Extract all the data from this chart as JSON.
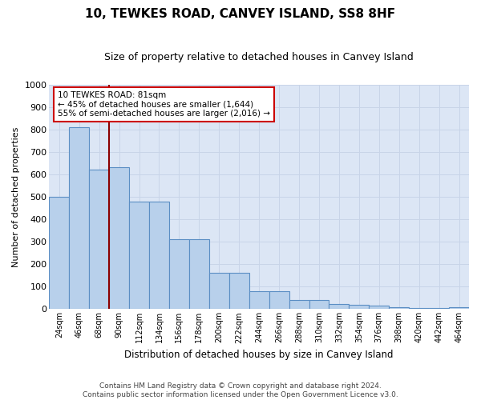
{
  "title": "10, TEWKES ROAD, CANVEY ISLAND, SS8 8HF",
  "subtitle": "Size of property relative to detached houses in Canvey Island",
  "xlabel": "Distribution of detached houses by size in Canvey Island",
  "ylabel": "Number of detached properties",
  "bar_heights": [
    500,
    810,
    620,
    630,
    480,
    480,
    310,
    310,
    160,
    160,
    80,
    80,
    42,
    42,
    22,
    20,
    15,
    10,
    5,
    5,
    8
  ],
  "categories": [
    "24sqm",
    "46sqm",
    "68sqm",
    "90sqm",
    "112sqm",
    "134sqm",
    "156sqm",
    "178sqm",
    "200sqm",
    "222sqm",
    "244sqm",
    "266sqm",
    "288sqm",
    "310sqm",
    "332sqm",
    "354sqm",
    "376sqm",
    "398sqm",
    "420sqm",
    "442sqm",
    "464sqm"
  ],
  "bar_color": "#b8d0eb",
  "bar_edge_color": "#5b8ec4",
  "vline_color": "#8b0000",
  "vline_x": 2.5,
  "annotation_text": "10 TEWKES ROAD: 81sqm\n← 45% of detached houses are smaller (1,644)\n55% of semi-detached houses are larger (2,016) →",
  "annotation_box_color": "#ffffff",
  "annotation_box_edge": "#cc0000",
  "ylim": [
    0,
    1000
  ],
  "yticks": [
    0,
    100,
    200,
    300,
    400,
    500,
    600,
    700,
    800,
    900,
    1000
  ],
  "grid_color": "#c8d4e8",
  "bg_color": "#dce6f5",
  "footnote_line1": "Contains HM Land Registry data © Crown copyright and database right 2024.",
  "footnote_line2": "Contains public sector information licensed under the Open Government Licence v3.0."
}
